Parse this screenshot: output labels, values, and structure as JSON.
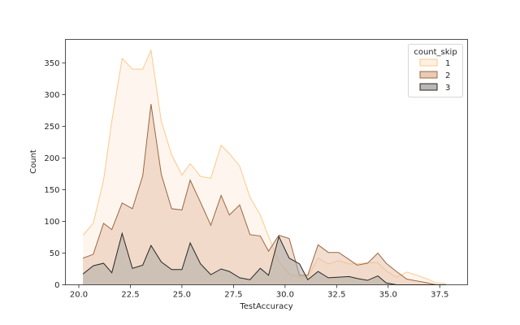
{
  "chart_data": {
    "type": "area",
    "xlabel": "TestAccuracy",
    "ylabel": "Count",
    "xlim": [
      19.35,
      38.85
    ],
    "ylim": [
      0,
      387
    ],
    "xticks": [
      "20.0",
      "22.5",
      "25.0",
      "27.5",
      "30.0",
      "32.5",
      "35.0",
      "37.5"
    ],
    "yticks": [
      "0",
      "50",
      "100",
      "150",
      "200",
      "250",
      "300",
      "350"
    ],
    "grid": false,
    "legend": {
      "title": "count_skip",
      "placement": "top-right"
    },
    "series": [
      {
        "name": "1",
        "fill": "#fdeedd",
        "stroke": "#fec888",
        "x": [
          20.2,
          20.7,
          21.2,
          21.6,
          22.1,
          22.6,
          23.1,
          23.5,
          24.0,
          24.5,
          25.0,
          25.4,
          25.9,
          26.4,
          26.9,
          27.3,
          27.8,
          28.3,
          28.8,
          29.2,
          29.7,
          30.2,
          30.7,
          31.1,
          31.6,
          32.1,
          32.6,
          33.1,
          33.5,
          34.0,
          34.5,
          34.9,
          35.4,
          35.9,
          36.4,
          36.9,
          37.3,
          37.8
        ],
        "y": [
          78,
          97,
          165,
          258,
          357,
          340,
          340,
          370,
          258,
          205,
          173,
          191,
          171,
          168,
          220,
          207,
          187,
          138,
          110,
          76,
          37,
          17,
          12,
          12,
          42,
          33,
          38,
          33,
          33,
          35,
          35,
          22,
          12,
          20,
          15,
          9,
          3,
          2
        ]
      },
      {
        "name": "2",
        "fill": "#e3bea4",
        "stroke": "#9d6541",
        "x": [
          20.2,
          20.7,
          21.2,
          21.6,
          22.1,
          22.6,
          23.1,
          23.5,
          24.0,
          24.5,
          25.0,
          25.4,
          25.9,
          26.4,
          26.9,
          27.3,
          27.8,
          28.3,
          28.8,
          29.2,
          29.7,
          30.2,
          30.7,
          31.1,
          31.6,
          32.1,
          32.6,
          33.1,
          33.5,
          34.0,
          34.5,
          34.9,
          35.4,
          35.9,
          36.4,
          36.9,
          37.3,
          37.8
        ],
        "y": [
          42,
          48,
          97,
          87,
          129,
          120,
          172,
          285,
          174,
          120,
          118,
          165,
          130,
          94,
          141,
          110,
          126,
          79,
          77,
          53,
          78,
          73,
          15,
          15,
          63,
          51,
          51,
          40,
          31,
          34,
          50,
          34,
          21,
          9,
          6,
          3,
          0,
          0
        ]
      },
      {
        "name": "3",
        "fill": "#a9a5a2",
        "stroke": "#272727",
        "x": [
          20.2,
          20.7,
          21.2,
          21.6,
          22.1,
          22.6,
          23.1,
          23.5,
          24.0,
          24.5,
          25.0,
          25.4,
          25.9,
          26.4,
          26.9,
          27.3,
          27.8,
          28.3,
          28.8,
          29.2,
          29.7,
          30.2,
          30.7,
          31.1,
          31.6,
          32.1,
          32.6,
          33.1,
          33.5,
          34.0,
          34.5,
          34.9,
          35.4,
          35.9,
          36.4,
          36.9,
          37.3,
          37.8
        ],
        "y": [
          17,
          30,
          34,
          19,
          81,
          26,
          31,
          62,
          36,
          24,
          24,
          66,
          33,
          16,
          25,
          21,
          11,
          8,
          26,
          15,
          76,
          42,
          33,
          8,
          21,
          11,
          12,
          13,
          10,
          7,
          14,
          3,
          0,
          0,
          0,
          0,
          0,
          0
        ]
      }
    ]
  }
}
